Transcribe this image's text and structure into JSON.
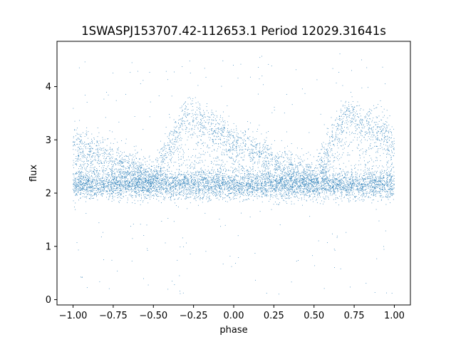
{
  "chart_data": {
    "type": "scatter",
    "title": "1SWASPJ153707.42-112653.1 Period 12029.31641s",
    "xlabel": "phase",
    "ylabel": "flux",
    "xlim": [
      -1.1,
      1.1
    ],
    "ylim": [
      -0.1,
      4.85
    ],
    "xticks": [
      -1.0,
      -0.75,
      -0.5,
      -0.25,
      0.0,
      0.25,
      0.5,
      0.75,
      1.0
    ],
    "xtick_labels": [
      "−1.00",
      "−0.75",
      "−0.50",
      "−0.25",
      "0.00",
      "0.25",
      "0.50",
      "0.75",
      "1.00"
    ],
    "yticks": [
      0,
      1,
      2,
      3,
      4
    ],
    "ytick_labels": [
      "0",
      "1",
      "2",
      "3",
      "4"
    ],
    "grid": false,
    "marker_color": "#1f77b4",
    "x_range_of_points": [
      -1.0,
      1.0
    ],
    "series_description": {
      "baseline_flux": 2.15,
      "baseline_spread": 0.13,
      "upper_branch": [
        {
          "phase": -1.0,
          "flux": 2.95
        },
        {
          "phase": -0.75,
          "flux": 2.65
        },
        {
          "phase": -0.5,
          "flux": 2.3
        },
        {
          "phase": -0.3,
          "flux": 3.5
        },
        {
          "phase": -0.1,
          "flux": 3.2
        },
        {
          "phase": 0.1,
          "flux": 2.85
        },
        {
          "phase": 0.3,
          "flux": 2.55
        },
        {
          "phase": 0.5,
          "flux": 2.3
        },
        {
          "phase": 0.7,
          "flux": 3.5
        },
        {
          "phase": 0.9,
          "flux": 3.2
        },
        {
          "phase": 1.0,
          "flux": 3.0
        }
      ],
      "outlier_flux_range": [
        0.1,
        4.65
      ]
    }
  }
}
